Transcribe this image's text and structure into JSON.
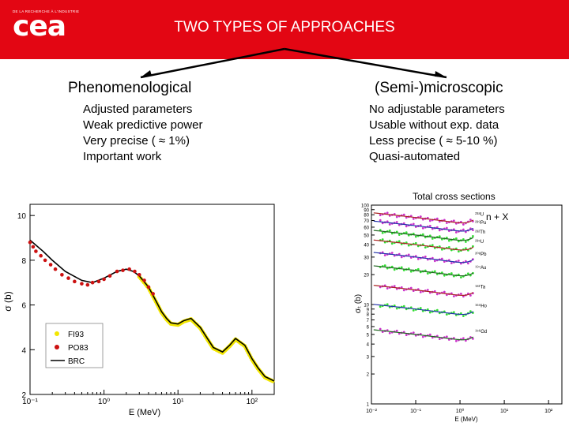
{
  "header": {
    "logo_tagline": "DE LA RECHERCHE À L'INDUSTRIE",
    "logo_text": "cea",
    "title": "TWO TYPES OF APPROACHES"
  },
  "left": {
    "title": "Phenomenological",
    "items": [
      "Adjusted parameters",
      "Weak predictive power",
      "Very precise ( ≈ 1%)",
      "Important work"
    ]
  },
  "right": {
    "title": "(Semi-)microscopic",
    "items": [
      "No adjustable parameters",
      "Usable without exp. data",
      "Less precise ( ≈ 5-10 %)",
      "Quasi-automated"
    ]
  },
  "caption": "Total cross sections",
  "chart_data": [
    {
      "type": "line",
      "title": "",
      "xlabel": "E (MeV)",
      "ylabel": "σ (b)",
      "xscale": "log",
      "xlim": [
        0.1,
        200
      ],
      "ylim": [
        2,
        10.5
      ],
      "x_ticks": [
        "10⁻¹",
        "10⁰",
        "10¹",
        "10²"
      ],
      "y_ticks": [
        "2",
        "4",
        "6",
        "8",
        "10"
      ],
      "legend": [
        "FI93",
        "PO83",
        "BRC"
      ],
      "legend_position": "bottom-left",
      "series": [
        {
          "name": "BRC",
          "color": "#000000",
          "x": [
            0.1,
            0.15,
            0.2,
            0.3,
            0.5,
            0.7,
            1.0,
            1.5,
            2.0,
            2.5,
            3.0,
            4.0,
            5.0,
            6.0,
            7.0,
            8.0,
            10.0,
            12.0,
            15.0,
            20.0,
            25.0,
            30.0,
            40.0,
            50.0,
            60.0,
            80.0,
            100.0,
            120.0,
            150.0,
            200.0
          ],
          "y": [
            8.9,
            8.4,
            8.0,
            7.5,
            7.1,
            7.0,
            7.2,
            7.5,
            7.6,
            7.5,
            7.3,
            6.8,
            6.2,
            5.7,
            5.4,
            5.2,
            5.15,
            5.3,
            5.4,
            5.0,
            4.5,
            4.1,
            3.9,
            4.2,
            4.5,
            4.2,
            3.6,
            3.2,
            2.8,
            2.6
          ]
        },
        {
          "name": "PO83",
          "color": "#cc1111",
          "x": [
            0.1,
            0.11,
            0.12,
            0.14,
            0.16,
            0.19,
            0.22,
            0.27,
            0.33,
            0.4,
            0.5,
            0.6,
            0.7,
            0.85,
            1.0,
            1.2,
            1.5,
            1.8,
            2.2,
            2.6,
            3.0,
            3.5,
            4.0,
            4.6
          ],
          "y": [
            8.8,
            8.6,
            8.4,
            8.2,
            8.0,
            7.8,
            7.6,
            7.35,
            7.2,
            7.05,
            6.95,
            6.9,
            7.0,
            7.05,
            7.15,
            7.3,
            7.5,
            7.55,
            7.6,
            7.5,
            7.35,
            7.1,
            6.8,
            6.5
          ]
        },
        {
          "name": "FI93",
          "color": "#f2e600",
          "x": [
            3.0,
            4.0,
            5.0,
            6.0,
            7.0,
            8.0,
            10.0,
            12.0,
            15.0,
            20.0,
            25.0,
            30.0,
            40.0,
            50.0,
            60.0,
            80.0,
            100.0,
            120.0,
            150.0,
            200.0
          ],
          "y": [
            7.3,
            6.8,
            6.2,
            5.7,
            5.4,
            5.2,
            5.15,
            5.3,
            5.4,
            5.0,
            4.5,
            4.1,
            3.9,
            4.2,
            4.5,
            4.2,
            3.6,
            3.2,
            2.8,
            2.6
          ]
        }
      ]
    },
    {
      "type": "line",
      "title": "n + X",
      "xlabel": "E (MeV)",
      "ylabel": "σₜ (b)",
      "xscale": "log",
      "xlim": [
        0.01,
        200
      ],
      "ylim": [
        1,
        100
      ],
      "x_ticks": [
        "10⁻²",
        "10⁻¹",
        "10⁰",
        "10¹",
        "10²"
      ],
      "y_ticks": [
        "100",
        "90",
        "80",
        "70",
        "60",
        "50",
        "40",
        "30",
        "20",
        "10",
        "9",
        "8",
        "7",
        "6",
        "5",
        "4",
        "3",
        "2",
        "1"
      ],
      "series": [
        {
          "name": "²³⁸U",
          "color": "#aa2222",
          "y_at_1MeV": 75
        },
        {
          "name": "²³⁹Pu",
          "color": "#2233aa",
          "y_at_1MeV": 62
        },
        {
          "name": "²³²Th",
          "color": "#226622",
          "y_at_1MeV": 50
        },
        {
          "name": "²³⁵U",
          "color": "#aa2222",
          "y_at_1MeV": 40
        },
        {
          "name": "²⁰⁸Pb",
          "color": "#2233aa",
          "y_at_1MeV": 30
        },
        {
          "name": "¹⁹⁷Au",
          "color": "#226622",
          "y_at_1MeV": 22
        },
        {
          "name": "¹⁸¹Ta",
          "color": "#aa2222",
          "y_at_1MeV": 14
        },
        {
          "name": "¹⁶⁵Ho",
          "color": "#2233aa",
          "y_at_1MeV": 9
        },
        {
          "name": "¹⁵⁶Gd",
          "color": "#226622",
          "y_at_1MeV": 5
        }
      ]
    }
  ]
}
